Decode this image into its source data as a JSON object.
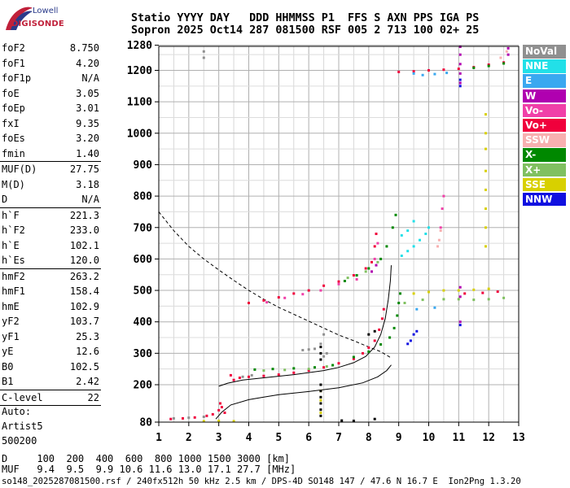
{
  "logo": {
    "top": "Lowell",
    "main": "DIGISONDE"
  },
  "header": {
    "line1": "Statio YYYY DAY   DDD HHMMSS P1  FFS S AXN PPS IGA PS",
    "line2": "Sopron 2025 Oct14 287 081500 RSF 005 2 713 100 02+ 25"
  },
  "params": [
    {
      "name": "foF2",
      "value": "8.750"
    },
    {
      "name": "foF1",
      "value": "4.20"
    },
    {
      "name": "foF1p",
      "value": "N/A"
    },
    {
      "name": "foE",
      "value": "3.05"
    },
    {
      "name": "foEp",
      "value": "3.01"
    },
    {
      "name": "fxI",
      "value": "9.35"
    },
    {
      "name": "foEs",
      "value": "3.20"
    },
    {
      "name": "fmin",
      "value": "1.40"
    },
    {
      "sep": true
    },
    {
      "name": "MUF(D)",
      "value": "27.75"
    },
    {
      "name": "M(D)",
      "value": "3.18"
    },
    {
      "name": "D",
      "value": "N/A"
    },
    {
      "sep": true
    },
    {
      "name": "h`F",
      "value": "221.3"
    },
    {
      "name": "h`F2",
      "value": "233.0"
    },
    {
      "name": "h`E",
      "value": "102.1"
    },
    {
      "name": "h`Es",
      "value": "120.0"
    },
    {
      "sep": true
    },
    {
      "name": "hmF2",
      "value": "263.2"
    },
    {
      "name": "hmF1",
      "value": "158.4"
    },
    {
      "name": "hmE",
      "value": "102.9"
    },
    {
      "name": "yF2",
      "value": "103.7"
    },
    {
      "name": "yF1",
      "value": "25.3"
    },
    {
      "name": "yE",
      "value": "12.6"
    },
    {
      "name": "B0",
      "value": "102.5"
    },
    {
      "name": "B1",
      "value": "2.42"
    },
    {
      "sep": true
    },
    {
      "name": "C-level",
      "value": "22"
    },
    {
      "sep": true
    }
  ],
  "auto": [
    "Auto:",
    "Artist5",
    "500200"
  ],
  "footer": {
    "d_row": "D     100  200  400  600  800 1000 1500 3000 [km]",
    "muf_row": "MUF   9.4  9.5  9.9 10.6 11.6 13.0 17.1 27.7 [MHz]",
    "file_row": "so148_2025287081500.rsf / 240fx512h 50 kHz 2.5 km / DPS-4D SO148 147 / 47.6 N 16.7 E  Ion2Png 1.3.20"
  },
  "legend": [
    {
      "label": "NoVal",
      "color": "#909090"
    },
    {
      "label": "NNE",
      "color": "#22e0e8"
    },
    {
      "label": "E",
      "color": "#3aa8f0"
    },
    {
      "label": "W",
      "color": "#b000b0"
    },
    {
      "label": "Vo-",
      "color": "#f040a8"
    },
    {
      "label": "Vo+",
      "color": "#f0003c"
    },
    {
      "label": "SSW",
      "color": "#f8b0b0"
    },
    {
      "label": "X-",
      "color": "#008800"
    },
    {
      "label": "X+",
      "color": "#80c060"
    },
    {
      "label": "SSE",
      "color": "#d8d000"
    },
    {
      "label": "NNW",
      "color": "#1010e0"
    }
  ],
  "chart_data": {
    "type": "scatter",
    "x_ticks": [
      "1",
      "2",
      "3",
      "4",
      "5",
      "6",
      "7",
      "8",
      "9",
      "10",
      "11",
      "12",
      "13"
    ],
    "y_ticks": [
      "80",
      "200",
      "300",
      "400",
      "500",
      "600",
      "700",
      "800",
      "900",
      "1000",
      "1100",
      "1200",
      "1280"
    ],
    "xlim": [
      1,
      13
    ],
    "ylim": [
      80,
      1280
    ],
    "grid": true,
    "ordinary_trace": [
      [
        3.0,
        195
      ],
      [
        3.3,
        205
      ],
      [
        3.8,
        215
      ],
      [
        4.5,
        222
      ],
      [
        5.5,
        232
      ],
      [
        6.5,
        245
      ],
      [
        7.0,
        255
      ],
      [
        7.5,
        270
      ],
      [
        7.9,
        290
      ],
      [
        8.2,
        320
      ],
      [
        8.4,
        360
      ],
      [
        8.55,
        410
      ],
      [
        8.65,
        470
      ],
      [
        8.72,
        530
      ],
      [
        8.75,
        580
      ]
    ],
    "profile_curve": [
      [
        2.9,
        90
      ],
      [
        3.1,
        112
      ],
      [
        3.4,
        135
      ],
      [
        4.0,
        152
      ],
      [
        4.5,
        160
      ],
      [
        5.0,
        168
      ],
      [
        6.0,
        178
      ],
      [
        7.0,
        190
      ],
      [
        7.8,
        206
      ],
      [
        8.3,
        225
      ],
      [
        8.6,
        245
      ],
      [
        8.75,
        263
      ]
    ],
    "mufd_curve": [
      [
        1.0,
        750
      ],
      [
        1.5,
        690
      ],
      [
        2.0,
        640
      ],
      [
        2.5,
        600
      ],
      [
        3.0,
        565
      ],
      [
        3.5,
        532
      ],
      [
        4.0,
        500
      ],
      [
        4.5,
        472
      ],
      [
        5.0,
        446
      ],
      [
        5.5,
        424
      ],
      [
        6.0,
        402
      ],
      [
        6.5,
        380
      ],
      [
        7.0,
        358
      ],
      [
        7.5,
        340
      ],
      [
        8.0,
        320
      ],
      [
        8.4,
        305
      ],
      [
        8.75,
        285
      ]
    ],
    "series": [
      {
        "color": "#f0003c",
        "points": [
          [
            1.4,
            90
          ],
          [
            1.8,
            92
          ],
          [
            2.2,
            95
          ],
          [
            2.6,
            100
          ],
          [
            2.8,
            105
          ],
          [
            3.0,
            118
          ],
          [
            3.05,
            140
          ],
          [
            3.1,
            128
          ],
          [
            3.2,
            110
          ],
          [
            3.4,
            230
          ],
          [
            3.5,
            215
          ],
          [
            3.7,
            222
          ],
          [
            4.0,
            225
          ],
          [
            4.5,
            228
          ],
          [
            5.0,
            232
          ],
          [
            5.5,
            238
          ],
          [
            6.0,
            245
          ],
          [
            6.5,
            255
          ],
          [
            7.0,
            268
          ],
          [
            7.5,
            282
          ],
          [
            7.8,
            300
          ],
          [
            8.0,
            318
          ],
          [
            8.2,
            340
          ],
          [
            8.35,
            375
          ],
          [
            8.45,
            410
          ],
          [
            8.5,
            440
          ],
          [
            4.0,
            460
          ],
          [
            4.5,
            468
          ],
          [
            5.0,
            478
          ],
          [
            5.5,
            490
          ],
          [
            6.0,
            500
          ],
          [
            6.5,
            515
          ],
          [
            7.0,
            528
          ],
          [
            7.5,
            548
          ],
          [
            7.9,
            570
          ],
          [
            8.1,
            590
          ],
          [
            8.2,
            640
          ],
          [
            8.25,
            680
          ],
          [
            9.0,
            1195
          ],
          [
            9.5,
            1197
          ],
          [
            10.0,
            1200
          ],
          [
            10.5,
            1202
          ],
          [
            11.0,
            1205
          ],
          [
            11.5,
            1210
          ],
          [
            12.0,
            1218
          ],
          [
            12.5,
            1225
          ],
          [
            11.2,
            490
          ],
          [
            11.8,
            492
          ],
          [
            12.3,
            496
          ]
        ]
      },
      {
        "color": "#008800",
        "points": [
          [
            4.2,
            248
          ],
          [
            4.8,
            250
          ],
          [
            5.5,
            252
          ],
          [
            6.2,
            255
          ],
          [
            6.8,
            262
          ],
          [
            7.5,
            288
          ],
          [
            8.0,
            305
          ],
          [
            8.4,
            328
          ],
          [
            8.7,
            350
          ],
          [
            8.85,
            380
          ],
          [
            8.95,
            420
          ],
          [
            9.0,
            460
          ],
          [
            9.05,
            490
          ],
          [
            7.2,
            530
          ],
          [
            7.6,
            548
          ],
          [
            8.0,
            570
          ],
          [
            8.4,
            600
          ],
          [
            8.6,
            640
          ],
          [
            8.8,
            700
          ],
          [
            8.9,
            740
          ],
          [
            11.5,
            1208
          ],
          [
            12.0,
            1214
          ],
          [
            12.5,
            1222
          ]
        ]
      },
      {
        "color": "#80c060",
        "points": [
          [
            4.5,
            245
          ],
          [
            5.2,
            247
          ],
          [
            6.0,
            250
          ],
          [
            6.6,
            258
          ],
          [
            9.2,
            460
          ],
          [
            9.8,
            470
          ],
          [
            10.5,
            472
          ],
          [
            11.0,
            472
          ],
          [
            11.5,
            470
          ],
          [
            12.0,
            472
          ],
          [
            12.5,
            476
          ],
          [
            7.3,
            540
          ],
          [
            7.9,
            560
          ],
          [
            8.3,
            590
          ]
        ]
      },
      {
        "color": "#f040a8",
        "points": [
          [
            4.6,
            462
          ],
          [
            5.2,
            476
          ],
          [
            5.8,
            488
          ],
          [
            6.4,
            500
          ],
          [
            7.0,
            520
          ],
          [
            7.6,
            535
          ],
          [
            8.2,
            600
          ],
          [
            8.3,
            650
          ],
          [
            10.4,
            700
          ],
          [
            10.45,
            760
          ],
          [
            10.5,
            800
          ]
        ]
      },
      {
        "color": "#b000b0",
        "points": [
          [
            11.05,
            1160
          ],
          [
            11.05,
            1190
          ],
          [
            11.05,
            1220
          ],
          [
            11.05,
            1250
          ],
          [
            11.05,
            1275
          ],
          [
            11.05,
            480
          ],
          [
            11.05,
            510
          ],
          [
            11.05,
            400
          ],
          [
            12.65,
            1250
          ],
          [
            12.65,
            1270
          ],
          [
            8.1,
            560
          ],
          [
            8.25,
            580
          ]
        ]
      },
      {
        "color": "#22e0e8",
        "points": [
          [
            9.1,
            610
          ],
          [
            9.3,
            625
          ],
          [
            9.5,
            640
          ],
          [
            9.7,
            660
          ],
          [
            9.9,
            680
          ],
          [
            9.5,
            720
          ],
          [
            9.3,
            690
          ],
          [
            9.1,
            675
          ],
          [
            10.0,
            700
          ]
        ]
      },
      {
        "color": "#3aa8f0",
        "points": [
          [
            9.5,
            1190
          ],
          [
            9.8,
            1185
          ],
          [
            10.2,
            1188
          ],
          [
            10.6,
            1192
          ],
          [
            9.6,
            440
          ],
          [
            10.2,
            445
          ]
        ]
      },
      {
        "color": "#1010e0",
        "points": [
          [
            11.05,
            1150
          ],
          [
            11.05,
            1170
          ],
          [
            9.3,
            330
          ],
          [
            9.4,
            340
          ],
          [
            9.5,
            360
          ],
          [
            9.6,
            370
          ],
          [
            11.05,
            390
          ]
        ]
      },
      {
        "color": "#d8d000",
        "points": [
          [
            11.9,
            1060
          ],
          [
            11.9,
            1000
          ],
          [
            11.9,
            950
          ],
          [
            11.9,
            880
          ],
          [
            11.9,
            820
          ],
          [
            11.9,
            760
          ],
          [
            11.9,
            700
          ],
          [
            11.9,
            640
          ],
          [
            9.5,
            490
          ],
          [
            10.0,
            495
          ],
          [
            10.5,
            500
          ],
          [
            11.0,
            500
          ],
          [
            11.5,
            502
          ],
          [
            12.0,
            505
          ],
          [
            2.5,
            83
          ],
          [
            3.0,
            84
          ],
          [
            3.5,
            83
          ],
          [
            6.4,
            110
          ],
          [
            6.4,
            150
          ],
          [
            6.4,
            180
          ]
        ]
      },
      {
        "color": "#f8b0b0",
        "points": [
          [
            10.3,
            640
          ],
          [
            10.35,
            660
          ],
          [
            10.4,
            690
          ],
          [
            12.4,
            1240
          ],
          [
            12.6,
            1260
          ]
        ]
      },
      {
        "color": "#909090",
        "points": [
          [
            1.5,
            92
          ],
          [
            2.0,
            94
          ],
          [
            2.5,
            97
          ],
          [
            3.8,
            225
          ],
          [
            4.1,
            230
          ],
          [
            5.8,
            310
          ],
          [
            6.0,
            312
          ],
          [
            6.2,
            314
          ],
          [
            6.4,
            330
          ],
          [
            6.5,
            290
          ],
          [
            6.6,
            300
          ],
          [
            6.5,
            360
          ],
          [
            7.5,
            85
          ],
          [
            2.5,
            1240
          ],
          [
            2.5,
            1260
          ]
        ]
      },
      {
        "color": "#000000",
        "points": [
          [
            6.4,
            100
          ],
          [
            6.4,
            120
          ],
          [
            6.4,
            140
          ],
          [
            6.4,
            160
          ],
          [
            6.4,
            180
          ],
          [
            6.4,
            200
          ],
          [
            6.4,
            280
          ],
          [
            6.4,
            300
          ],
          [
            6.4,
            320
          ],
          [
            7.1,
            85
          ],
          [
            7.5,
            83
          ],
          [
            8.2,
            90
          ],
          [
            8.0,
            360
          ],
          [
            8.2,
            370
          ]
        ]
      }
    ]
  }
}
